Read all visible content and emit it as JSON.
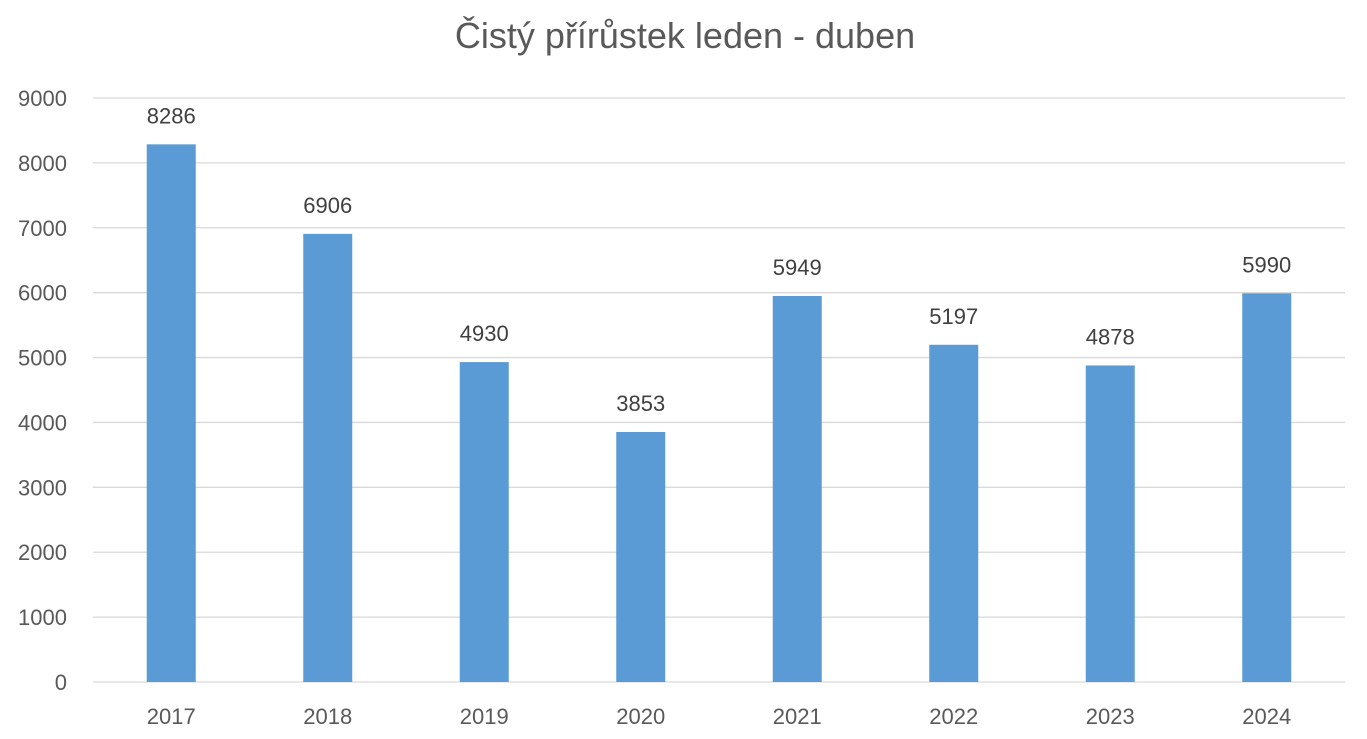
{
  "chart_data": {
    "type": "bar",
    "title": "Čistý přírůstek leden - duben",
    "xlabel": "",
    "ylabel": "",
    "categories": [
      "2017",
      "2018",
      "2019",
      "2020",
      "2021",
      "2022",
      "2023",
      "2024"
    ],
    "values": [
      8286,
      6906,
      4930,
      3853,
      5949,
      5197,
      4878,
      5990
    ],
    "data_labels": [
      "8286",
      "6906",
      "4930",
      "3853",
      "5949",
      "5197",
      "4878",
      "5990"
    ],
    "ylim": [
      0,
      9000
    ],
    "y_ticks": [
      0,
      1000,
      2000,
      3000,
      4000,
      5000,
      6000,
      7000,
      8000,
      9000
    ],
    "y_tick_labels": [
      "0",
      "1000",
      "2000",
      "3000",
      "4000",
      "5000",
      "6000",
      "7000",
      "8000",
      "9000"
    ],
    "grid": true,
    "legend": "none",
    "colors": {
      "bar": "#5B9BD5",
      "grid": "#D9D9D9",
      "axis": "#D9D9D9",
      "text": "#595959"
    }
  }
}
